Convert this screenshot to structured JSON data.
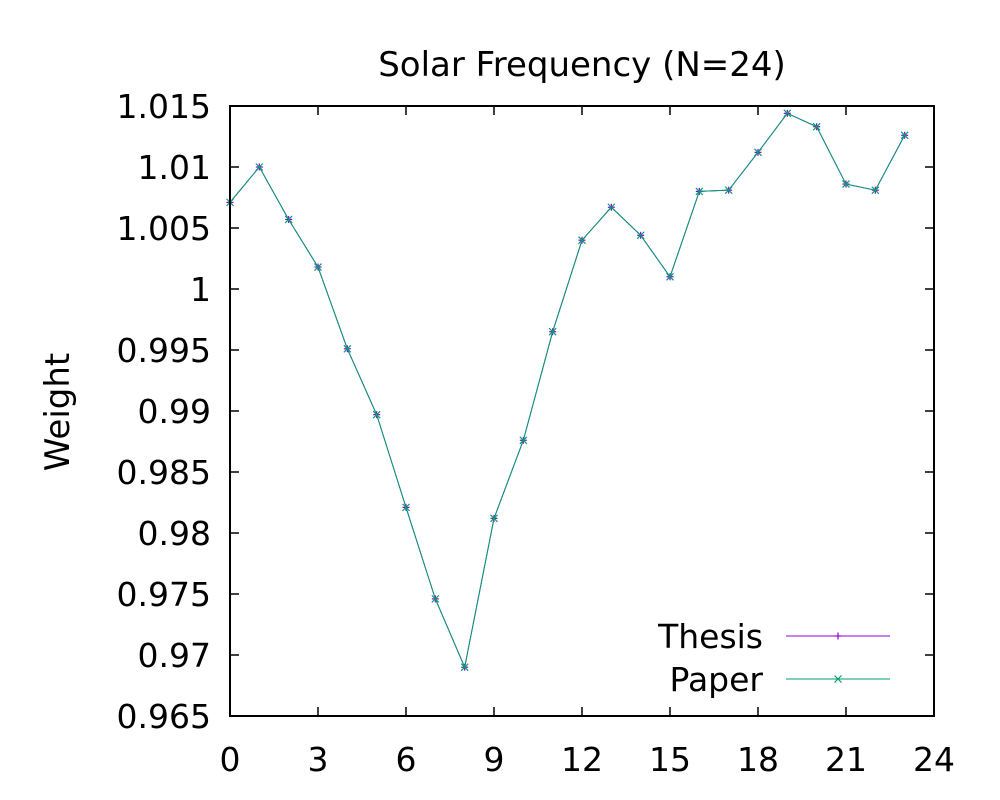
{
  "chart_data": {
    "type": "line",
    "title": "Solar Frequency (N=24)",
    "xlabel": "",
    "ylabel": "Weight",
    "xlim": [
      0,
      24
    ],
    "ylim": [
      0.965,
      1.015
    ],
    "xticks": [
      0,
      3,
      6,
      9,
      12,
      15,
      18,
      21,
      24
    ],
    "xtick_labels": [
      "0",
      "3",
      "6",
      "9",
      "12",
      "15",
      "18",
      "21",
      "24"
    ],
    "yticks": [
      0.965,
      0.97,
      0.975,
      0.98,
      0.985,
      0.99,
      0.995,
      1.0,
      1.005,
      1.01,
      1.015
    ],
    "ytick_labels": [
      "0.965",
      "0.97",
      "0.975",
      "0.98",
      "0.985",
      "0.99",
      "0.995",
      "1",
      "1.005",
      "1.01",
      "1.015"
    ],
    "grid": false,
    "legend_position": "bottom-right",
    "x": [
      0,
      1,
      2,
      3,
      4,
      5,
      6,
      7,
      8,
      9,
      10,
      11,
      12,
      13,
      14,
      15,
      16,
      17,
      18,
      19,
      20,
      21,
      22,
      23
    ],
    "series": [
      {
        "name": "Thesis",
        "color": "#9400d3",
        "marker": "plus",
        "values": [
          1.0071,
          1.01,
          1.0057,
          1.0018,
          0.9951,
          0.9897,
          0.9821,
          0.9746,
          0.969,
          0.9812,
          0.9876,
          0.9965,
          1.004,
          1.0067,
          1.0044,
          1.001,
          1.008,
          1.0081,
          1.0112,
          1.0144,
          1.0133,
          1.0086,
          1.0081,
          1.0126
        ]
      },
      {
        "name": "Paper",
        "color": "#009e73",
        "marker": "cross",
        "values": [
          1.0071,
          1.01,
          1.0057,
          1.0018,
          0.9951,
          0.9897,
          0.9821,
          0.9746,
          0.969,
          0.9812,
          0.9876,
          0.9965,
          1.004,
          1.0067,
          1.0044,
          1.001,
          1.008,
          1.0081,
          1.0112,
          1.0144,
          1.0133,
          1.0086,
          1.0081,
          1.0126
        ]
      }
    ]
  }
}
